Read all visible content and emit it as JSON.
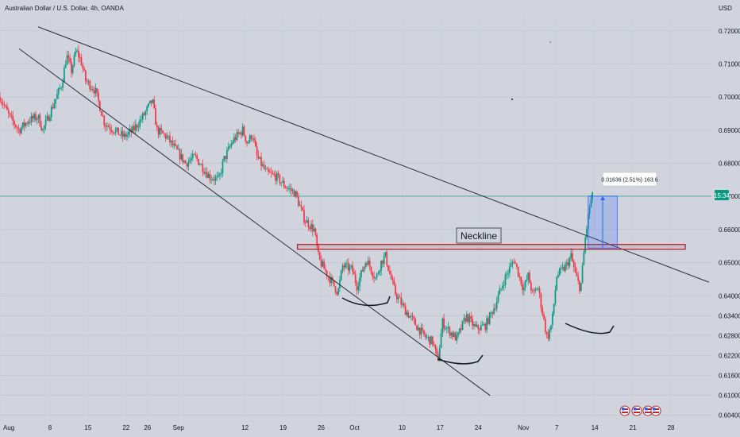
{
  "header": {
    "title": "Australian Dollar / U.S. Dollar, 4h, OANDA"
  },
  "axis": {
    "currency": "USD",
    "price_label": "0.67",
    "time_label": "15:34"
  },
  "colors": {
    "background": "#d1d4dc",
    "up": "#089981",
    "down": "#f23645",
    "line": "#2a2e39",
    "neckline": "#b22833",
    "measure": "#2962ff",
    "price_tag": "#089981"
  },
  "annotations": {
    "neckline": "Neckline",
    "measure": "0.01636 (2.51%) 163.6"
  },
  "event_icons": [
    "flag-us-icon",
    "flag-us-icon",
    "flag-us-icon",
    "flag-us-icon"
  ],
  "chart_data": {
    "type": "candlestick",
    "title": "Australian Dollar / U.S. Dollar, 4h, OANDA",
    "xlabel": "",
    "ylabel": "USD",
    "ylim": [
      0.6017,
      0.7245
    ],
    "grid": true,
    "y_ticks": [
      "0.72000",
      "0.71000",
      "0.70000",
      "0.69000",
      "0.68000",
      "0.67000",
      "0.66000",
      "0.65000",
      "0.64000",
      "0.63400",
      "0.62800",
      "0.62200",
      "0.61600",
      "0.61000",
      "0.60400"
    ],
    "x_ticks": [
      {
        "label": "Aug",
        "x": 0
      },
      {
        "label": "8",
        "x": 10.5
      },
      {
        "label": "15",
        "x": 18.5
      },
      {
        "label": "22",
        "x": 26.5
      },
      {
        "label": "26",
        "x": 31
      },
      {
        "label": "Sep",
        "x": 37.5
      },
      {
        "label": "12",
        "x": 51.5
      },
      {
        "label": "19",
        "x": 59.5
      },
      {
        "label": "26",
        "x": 67.5
      },
      {
        "label": "Oct",
        "x": 74.5
      },
      {
        "label": "10",
        "x": 84.5
      },
      {
        "label": "17",
        "x": 92.5
      },
      {
        "label": "24",
        "x": 100.5
      },
      {
        "label": "Nov",
        "x": 110
      },
      {
        "label": "7",
        "x": 117
      },
      {
        "label": "14",
        "x": 125
      },
      {
        "label": "21",
        "x": 133
      },
      {
        "label": "28",
        "x": 141
      }
    ],
    "price_path": [
      [
        0,
        0.7
      ],
      [
        2,
        0.694
      ],
      [
        4,
        0.69
      ],
      [
        6,
        0.693
      ],
      [
        8,
        0.694
      ],
      [
        9,
        0.69
      ],
      [
        11,
        0.697
      ],
      [
        13,
        0.704
      ],
      [
        14,
        0.7125
      ],
      [
        15,
        0.708
      ],
      [
        16,
        0.714
      ],
      [
        17,
        0.711
      ],
      [
        18,
        0.705
      ],
      [
        20,
        0.702
      ],
      [
        22,
        0.692
      ],
      [
        24,
        0.69
      ],
      [
        26,
        0.688
      ],
      [
        28,
        0.69
      ],
      [
        30,
        0.694
      ],
      [
        32,
        0.699
      ],
      [
        33,
        0.69
      ],
      [
        35,
        0.688
      ],
      [
        37,
        0.684
      ],
      [
        39,
        0.68
      ],
      [
        41,
        0.682
      ],
      [
        44,
        0.676
      ],
      [
        46,
        0.675
      ],
      [
        47,
        0.681
      ],
      [
        49,
        0.687
      ],
      [
        51,
        0.69
      ],
      [
        52,
        0.686
      ],
      [
        53,
        0.689
      ],
      [
        54,
        0.682
      ],
      [
        56,
        0.677
      ],
      [
        58,
        0.676
      ],
      [
        60,
        0.673
      ],
      [
        62,
        0.671
      ],
      [
        64,
        0.663
      ],
      [
        66,
        0.66
      ],
      [
        67,
        0.651
      ],
      [
        69,
        0.646
      ],
      [
        71,
        0.641
      ],
      [
        72,
        0.649
      ],
      [
        74,
        0.648
      ],
      [
        75,
        0.643
      ],
      [
        77,
        0.651
      ],
      [
        79,
        0.645
      ],
      [
        80,
        0.65
      ],
      [
        81,
        0.652
      ],
      [
        82,
        0.646
      ],
      [
        83,
        0.641
      ],
      [
        85,
        0.636
      ],
      [
        87,
        0.632
      ],
      [
        89,
        0.628
      ],
      [
        91,
        0.626
      ],
      [
        92,
        0.62
      ],
      [
        93,
        0.632
      ],
      [
        94,
        0.63
      ],
      [
        96,
        0.627
      ],
      [
        98,
        0.634
      ],
      [
        100,
        0.63
      ],
      [
        102,
        0.631
      ],
      [
        104,
        0.637
      ],
      [
        106,
        0.645
      ],
      [
        108,
        0.651
      ],
      [
        110,
        0.642
      ],
      [
        111,
        0.646
      ],
      [
        112,
        0.64
      ],
      [
        113,
        0.643
      ],
      [
        114,
        0.635
      ],
      [
        115,
        0.627
      ],
      [
        116,
        0.632
      ],
      [
        117,
        0.646
      ],
      [
        119,
        0.649
      ],
      [
        120,
        0.652
      ],
      [
        121,
        0.646
      ],
      [
        122,
        0.642
      ],
      [
        123,
        0.6575
      ],
      [
        124,
        0.668
      ],
      [
        124.5,
        0.67
      ]
    ],
    "trendlines": [
      {
        "name": "upper-trendline",
        "points": [
          [
            8,
            0.7212
          ],
          [
            149,
            0.6441
          ]
        ]
      },
      {
        "name": "lower-trendline",
        "points": [
          [
            4,
            0.7146
          ],
          [
            103,
            0.6099
          ]
        ]
      }
    ],
    "neckline_zone": {
      "x": [
        62.5,
        144
      ],
      "y": [
        0.6541,
        0.6555
      ]
    },
    "measure_box": {
      "x": [
        123.6,
        129.7
      ],
      "y": [
        0.6544,
        0.6701
      ]
    },
    "hline_price": 0.6701
  }
}
